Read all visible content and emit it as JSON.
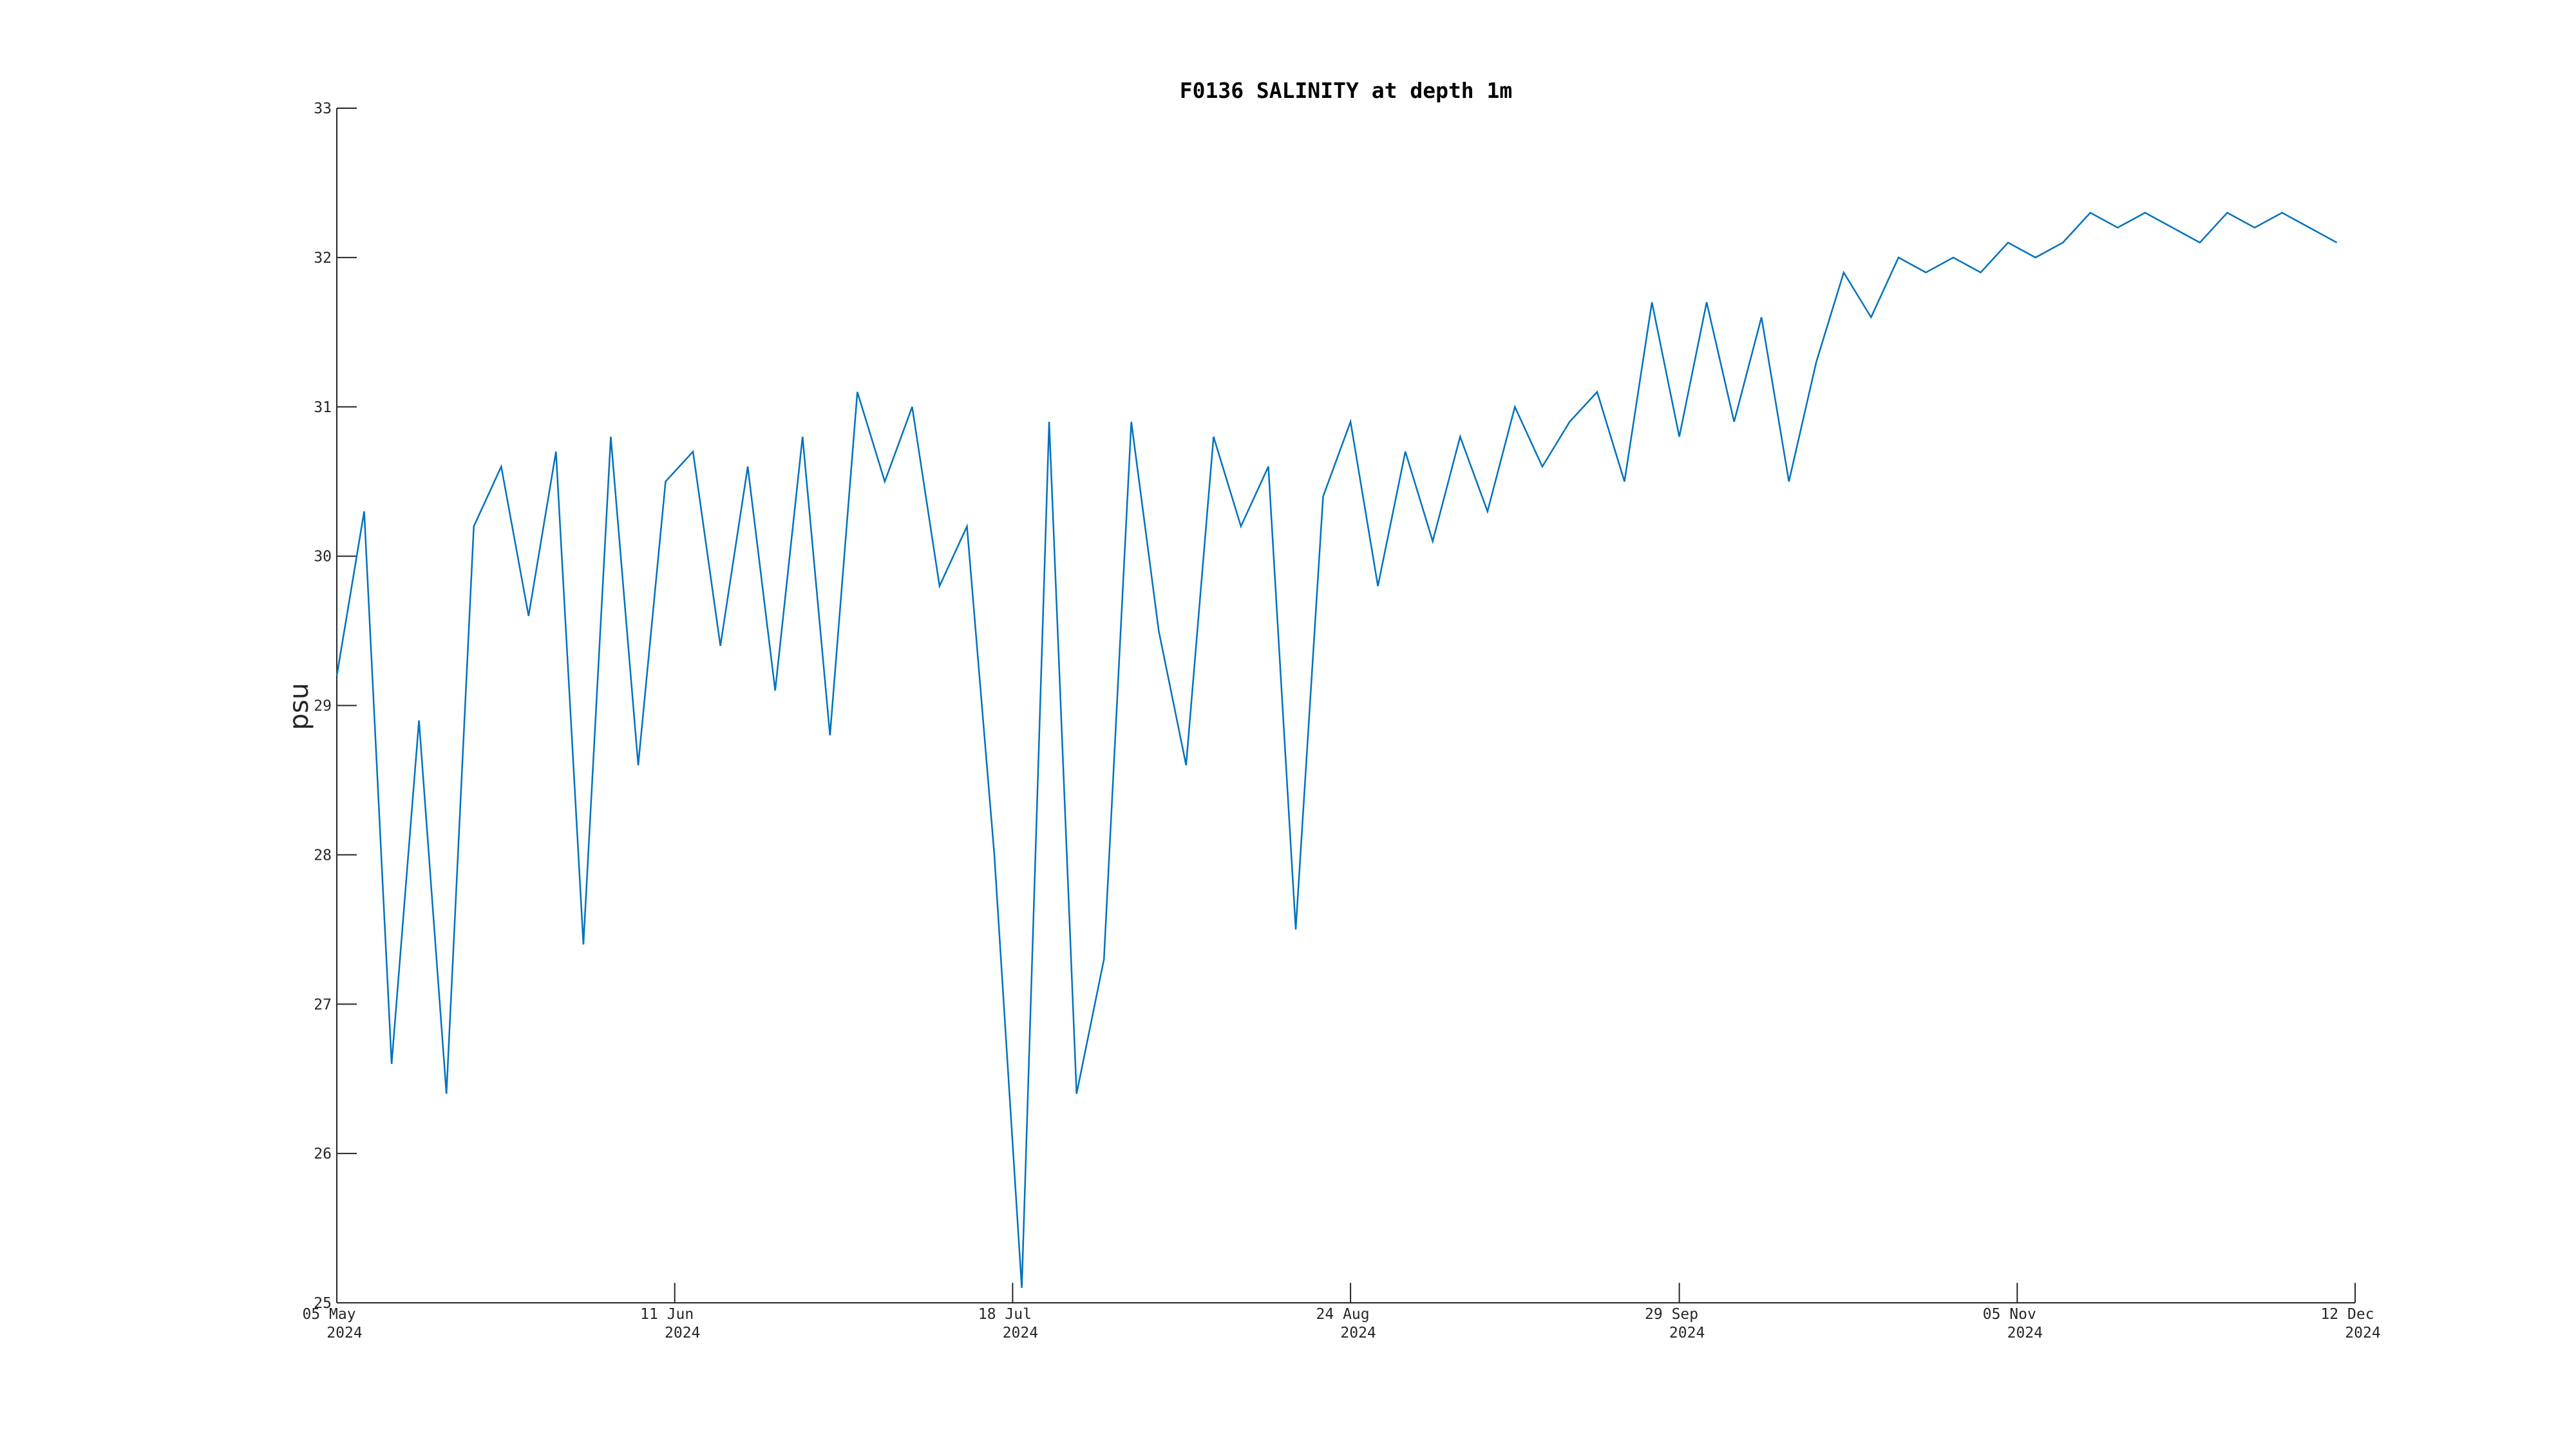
{
  "chart_data": {
    "type": "line",
    "title": "F0136 SALINITY at depth 1m",
    "y_label": "psu",
    "x": [
      "2024-05-05",
      "2024-05-08",
      "2024-05-11",
      "2024-05-14",
      "2024-05-17",
      "2024-05-20",
      "2024-05-23",
      "2024-05-26",
      "2024-05-29",
      "2024-06-01",
      "2024-06-04",
      "2024-06-07",
      "2024-06-10",
      "2024-06-13",
      "2024-06-16",
      "2024-06-19",
      "2024-06-22",
      "2024-06-25",
      "2024-06-28",
      "2024-07-01",
      "2024-07-04",
      "2024-07-07",
      "2024-07-10",
      "2024-07-13",
      "2024-07-16",
      "2024-07-19",
      "2024-07-22",
      "2024-07-25",
      "2024-07-28",
      "2024-07-31",
      "2024-08-03",
      "2024-08-06",
      "2024-08-09",
      "2024-08-12",
      "2024-08-15",
      "2024-08-18",
      "2024-08-21",
      "2024-08-24",
      "2024-08-27",
      "2024-08-30",
      "2024-09-02",
      "2024-09-05",
      "2024-09-08",
      "2024-09-11",
      "2024-09-14",
      "2024-09-17",
      "2024-09-20",
      "2024-09-23",
      "2024-09-26",
      "2024-09-29",
      "2024-10-02",
      "2024-10-05",
      "2024-10-08",
      "2024-10-11",
      "2024-10-14",
      "2024-10-17",
      "2024-10-20",
      "2024-10-23",
      "2024-10-26",
      "2024-10-29",
      "2024-11-01",
      "2024-11-04",
      "2024-11-07",
      "2024-11-10",
      "2024-11-13",
      "2024-11-16",
      "2024-11-19",
      "2024-11-22",
      "2024-11-25",
      "2024-11-28",
      "2024-12-01",
      "2024-12-04",
      "2024-12-07",
      "2024-12-10"
    ],
    "series": [
      {
        "name": "SALINITY",
        "color": "#0072bd",
        "values": [
          29.2,
          30.3,
          26.6,
          28.9,
          26.4,
          30.2,
          30.6,
          29.6,
          30.7,
          27.4,
          30.8,
          28.6,
          30.5,
          30.7,
          29.4,
          30.6,
          29.1,
          30.8,
          28.8,
          31.1,
          30.5,
          31.0,
          29.8,
          30.2,
          28.0,
          25.1,
          30.9,
          26.4,
          27.3,
          30.9,
          29.5,
          28.6,
          30.8,
          30.2,
          30.6,
          27.5,
          30.4,
          30.9,
          29.8,
          30.7,
          30.1,
          30.8,
          30.3,
          31.0,
          30.6,
          30.9,
          31.1,
          30.5,
          31.7,
          30.8,
          31.7,
          30.9,
          31.6,
          30.5,
          31.3,
          31.9,
          31.6,
          32.0,
          31.9,
          32.0,
          31.9,
          32.1,
          32.0,
          32.1,
          32.3,
          32.2,
          32.3,
          32.2,
          32.1,
          32.3,
          32.2,
          32.3,
          32.2,
          32.1
        ]
      }
    ],
    "xlim": [
      "2024-05-05",
      "2024-12-12"
    ],
    "xticks": [
      {
        "value": "2024-05-05",
        "label": "05 May 2024"
      },
      {
        "value": "2024-06-11",
        "label": "11 Jun 2024"
      },
      {
        "value": "2024-07-18",
        "label": "18 Jul 2024"
      },
      {
        "value": "2024-08-24",
        "label": "24 Aug 2024"
      },
      {
        "value": "2024-09-29",
        "label": "29 Sep 2024"
      },
      {
        "value": "2024-11-05",
        "label": "05 Nov 2024"
      },
      {
        "value": "2024-12-12",
        "label": "12 Dec 2024"
      }
    ],
    "ylim": [
      25,
      33
    ],
    "yticks": [
      25,
      26,
      27,
      28,
      29,
      30,
      31,
      32,
      33
    ],
    "grid": false
  }
}
